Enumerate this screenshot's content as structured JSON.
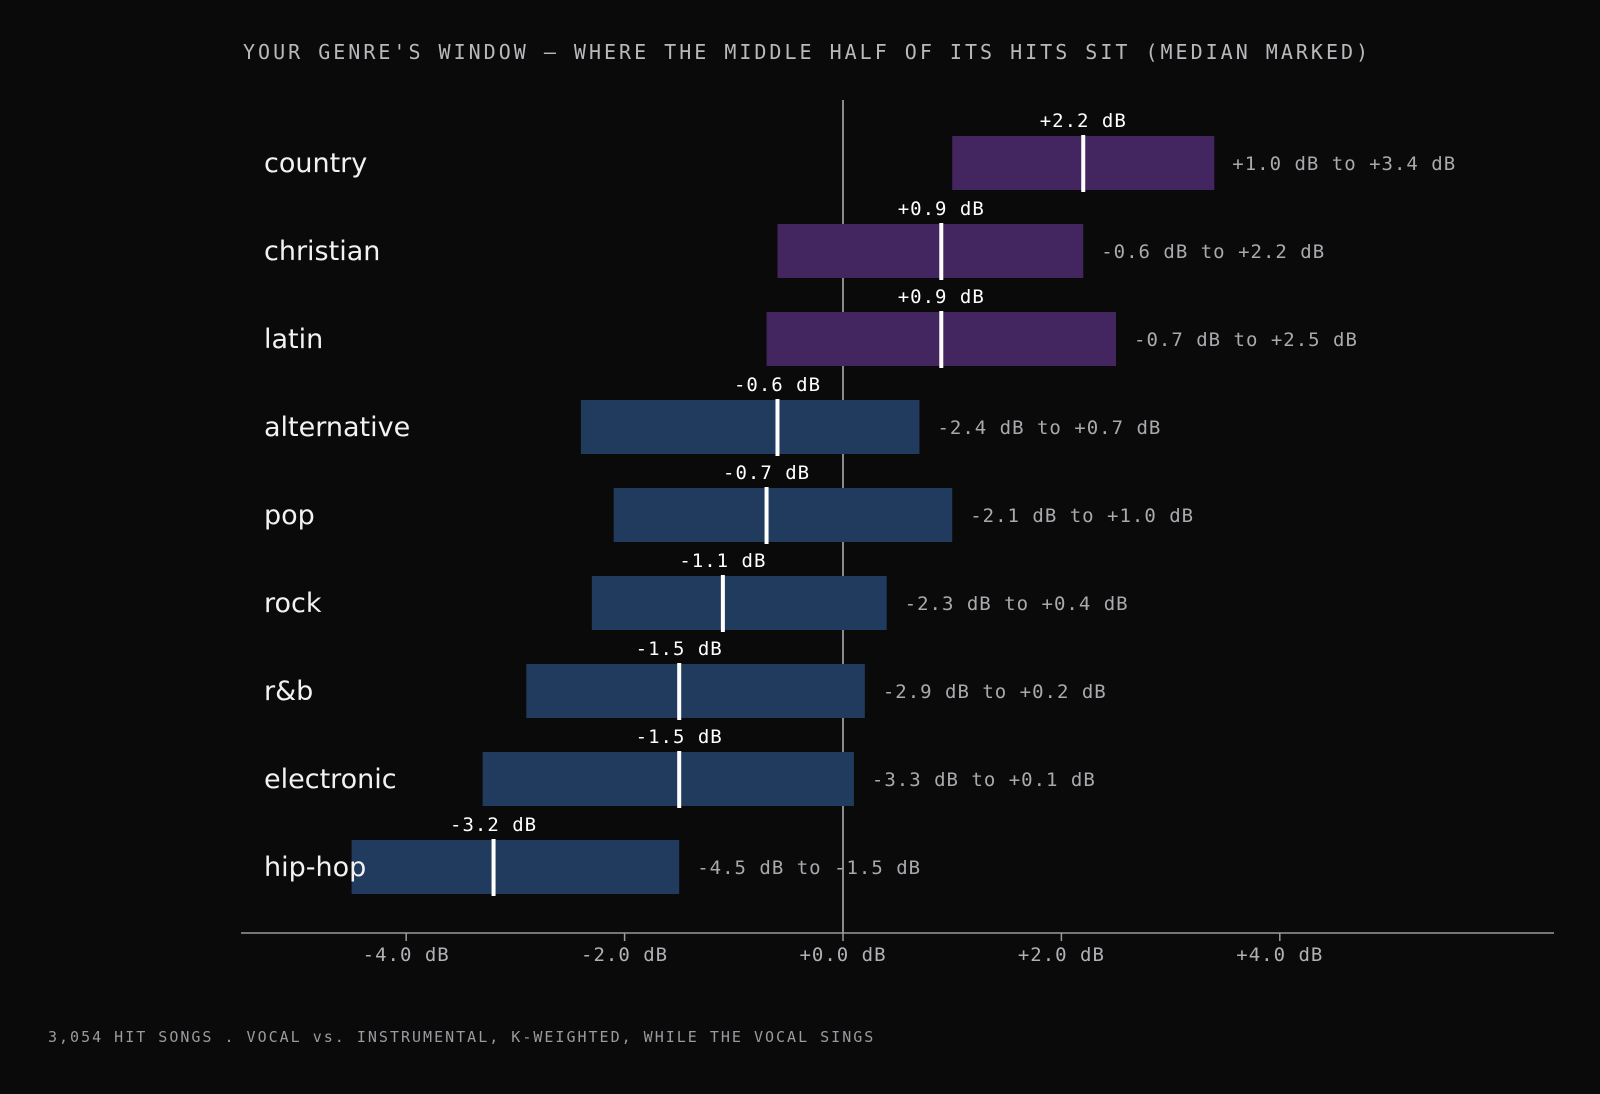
{
  "title": "YOUR GENRE'S WINDOW — WHERE THE MIDDLE HALF OF ITS HITS SIT (MEDIAN MARKED)",
  "footnote": "3,054 HIT SONGS . VOCAL vs. INSTRUMENTAL, K-WEIGHTED, WHILE THE VOCAL SINGS",
  "colors": {
    "background": "#0b0a0a",
    "positive_bar": "#432560",
    "negative_bar": "#213b5e",
    "median_marker": "#ffffff",
    "zero_line": "#cfcfd4",
    "axis": "#9a9aa0"
  },
  "chart_data": {
    "type": "bar",
    "subtype": "horizontal range bars with median marker",
    "xlim": [
      -5.0,
      6.2
    ],
    "x_ticks": [
      -4.0,
      -2.0,
      0.0,
      2.0,
      4.0
    ],
    "x_tick_labels": [
      "-4.0 dB",
      "-2.0 dB",
      "+0.0 dB",
      "+2.0 dB",
      "+4.0 dB"
    ],
    "reference_line": 0.0,
    "grid": false,
    "categories": [
      "country",
      "christian",
      "latin",
      "alternative",
      "pop",
      "rock",
      "r&b",
      "electronic",
      "hip-hop"
    ],
    "low": [
      1.0,
      -0.6,
      -0.7,
      -2.4,
      -2.1,
      -2.3,
      -2.9,
      -3.3,
      -4.5
    ],
    "high": [
      3.4,
      2.2,
      2.5,
      0.7,
      1.0,
      0.4,
      0.2,
      0.1,
      -1.5
    ],
    "median": [
      2.2,
      0.9,
      0.9,
      -0.6,
      -0.7,
      -1.1,
      -1.5,
      -1.5,
      -3.2
    ],
    "median_labels": [
      "+2.2 dB",
      "+0.9 dB",
      "+0.9 dB",
      "-0.6 dB",
      "-0.7 dB",
      "-1.1 dB",
      "-1.5 dB",
      "-1.5 dB",
      "-3.2 dB"
    ],
    "range_labels": [
      "+1.0 dB to +3.4 dB",
      "-0.6 dB to +2.2 dB",
      "-0.7 dB to +2.5 dB",
      "-2.4 dB to +0.7 dB",
      "-2.1 dB to +1.0 dB",
      "-2.3 dB to +0.4 dB",
      "-2.9 dB to +0.2 dB",
      "-3.3 dB to +0.1 dB",
      "-4.5 dB to -1.5 dB"
    ]
  }
}
